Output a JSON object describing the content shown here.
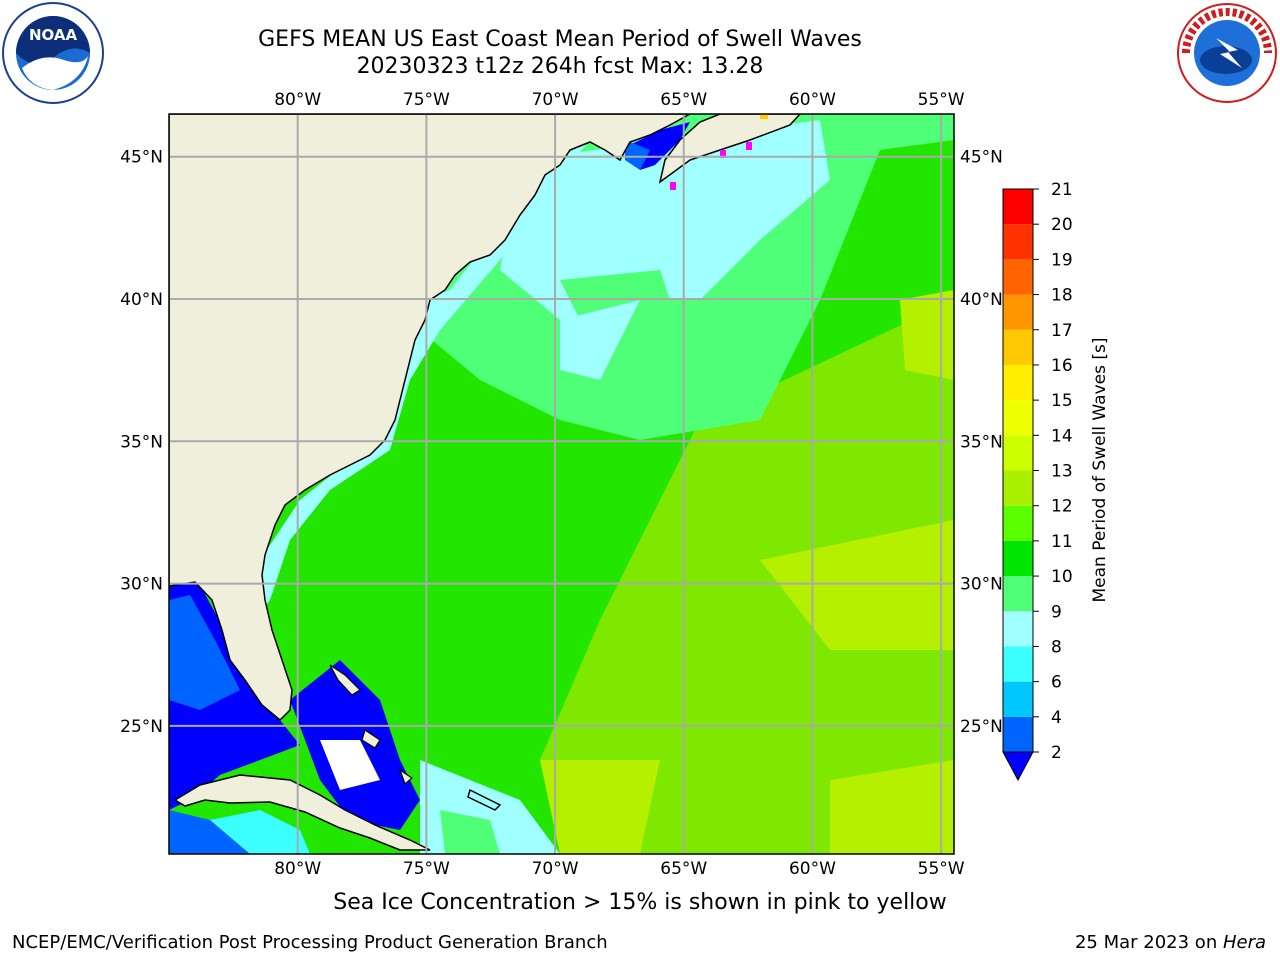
{
  "header": {
    "title_line1": "GEFS MEAN US East Coast Mean Period of Swell Waves",
    "title_line2": "20230323 t12z 264h fcst   Max: 13.28"
  },
  "logos": {
    "left": "NOAA",
    "right": "NATIONAL WEATHER SERVICE"
  },
  "map": {
    "region": "US East Coast / Western North Atlantic",
    "lon_ticks": [
      "80°W",
      "75°W",
      "70°W",
      "65°W",
      "60°W",
      "55°W"
    ],
    "lat_ticks": [
      "45°N",
      "40°N",
      "35°N",
      "30°N",
      "25°N"
    ],
    "lon_range": [
      -85,
      -54.5
    ],
    "lat_range": [
      20.5,
      46.5
    ],
    "grid": true
  },
  "colorbar": {
    "label": "Mean Period of Swell Waves [s]",
    "ticks": [
      "2",
      "4",
      "6",
      "8",
      "9",
      "10",
      "11",
      "12",
      "13",
      "14",
      "15",
      "16",
      "17",
      "18",
      "19",
      "20",
      "21"
    ],
    "colors": [
      "#0064ff",
      "#00c8ff",
      "#3cffff",
      "#a0ffff",
      "#50ff78",
      "#00e600",
      "#5aff00",
      "#aaf000",
      "#ccff00",
      "#eeff00",
      "#ffee00",
      "#ffc800",
      "#ff9600",
      "#ff6400",
      "#ff3200",
      "#ff0000"
    ],
    "under_color": "#0000ff"
  },
  "footer": {
    "note": "Sea Ice Concentration > 15% is shown in pink to yellow",
    "left": "NCEP/EMC/Verification Post Processing Product Generation Branch",
    "right_date": "25 Mar 2023 on ",
    "right_machine": "Hera"
  }
}
